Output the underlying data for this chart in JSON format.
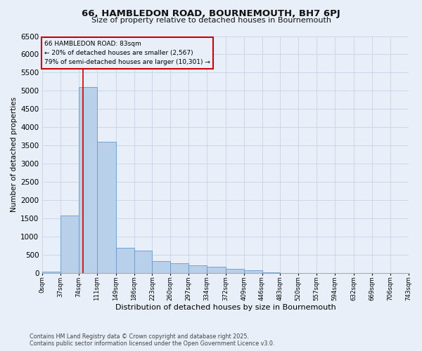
{
  "title_line1": "66, HAMBLEDON ROAD, BOURNEMOUTH, BH7 6PJ",
  "title_line2": "Size of property relative to detached houses in Bournemouth",
  "xlabel": "Distribution of detached houses by size in Bournemouth",
  "ylabel": "Number of detached properties",
  "footer_line1": "Contains HM Land Registry data © Crown copyright and database right 2025.",
  "footer_line2": "Contains public sector information licensed under the Open Government Licence v3.0.",
  "property_size": 83,
  "annotation_text": "66 HAMBLEDON ROAD: 83sqm\n← 20% of detached houses are smaller (2,567)\n79% of semi-detached houses are larger (10,301) →",
  "bin_edges": [
    0,
    37,
    74,
    111,
    149,
    186,
    223,
    260,
    297,
    334,
    372,
    409,
    446,
    483,
    520,
    557,
    594,
    632,
    669,
    706,
    743
  ],
  "bar_heights": [
    50,
    1580,
    5100,
    3600,
    700,
    620,
    340,
    270,
    210,
    170,
    130,
    80,
    30,
    0,
    0,
    0,
    0,
    0,
    0,
    0
  ],
  "bar_color": "#b8d0ea",
  "bar_edge_color": "#6699cc",
  "redline_color": "#cc0000",
  "annotation_box_color": "#cc0000",
  "grid_color": "#c8d8ec",
  "bg_color": "#e8eff8",
  "ylim": [
    0,
    6500
  ],
  "yticks": [
    0,
    500,
    1000,
    1500,
    2000,
    2500,
    3000,
    3500,
    4000,
    4500,
    5000,
    5500,
    6000,
    6500
  ]
}
